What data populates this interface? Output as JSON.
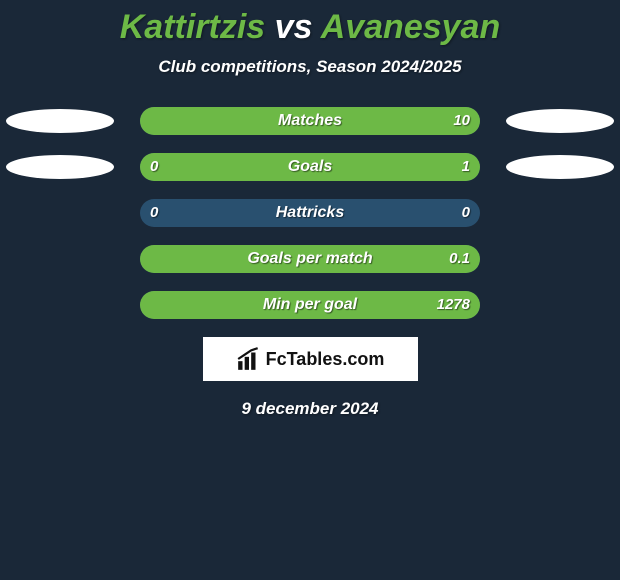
{
  "title": {
    "player1": "Kattirtzis",
    "vs": "vs",
    "player2": "Avanesyan",
    "player1_color": "#6db946",
    "player2_color": "#6db946",
    "vs_color": "#ffffff",
    "fontsize": 34
  },
  "subtitle": "Club competitions, Season 2024/2025",
  "background_color": "#1a2838",
  "track_color": "#29506f",
  "fill_color": "#6db946",
  "text_color": "#ffffff",
  "avatar_color": "#ffffff",
  "stats": [
    {
      "label": "Matches",
      "left_value": "",
      "right_value": "10",
      "left_pct": 0,
      "right_pct": 100,
      "show_left_avatar": true,
      "show_right_avatar": true
    },
    {
      "label": "Goals",
      "left_value": "0",
      "right_value": "1",
      "left_pct": 0,
      "right_pct": 100,
      "show_left_avatar": true,
      "show_right_avatar": true
    },
    {
      "label": "Hattricks",
      "left_value": "0",
      "right_value": "0",
      "left_pct": 0,
      "right_pct": 0,
      "show_left_avatar": false,
      "show_right_avatar": false
    },
    {
      "label": "Goals per match",
      "left_value": "",
      "right_value": "0.1",
      "left_pct": 0,
      "right_pct": 100,
      "show_left_avatar": false,
      "show_right_avatar": false
    },
    {
      "label": "Min per goal",
      "left_value": "",
      "right_value": "1278",
      "left_pct": 0,
      "right_pct": 100,
      "show_left_avatar": false,
      "show_right_avatar": false
    }
  ],
  "brand": {
    "text": "FcTables.com",
    "background_color": "#ffffff",
    "text_color": "#111111"
  },
  "date": "9 december 2024"
}
